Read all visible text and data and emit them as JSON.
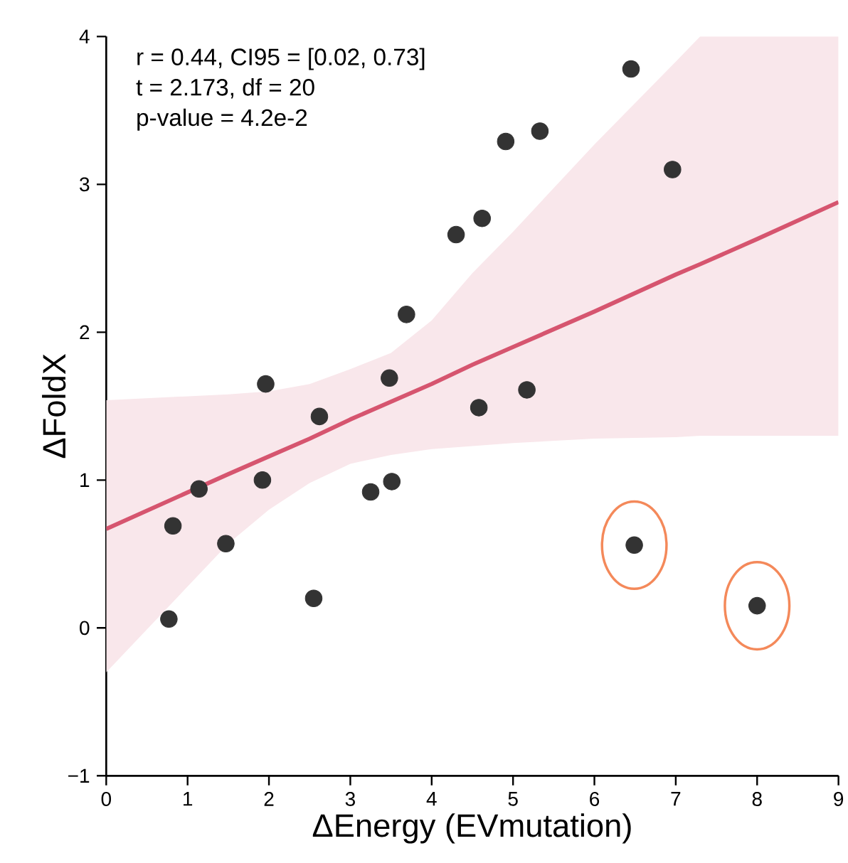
{
  "chart_data": {
    "type": "scatter",
    "xlabel": "ΔEnergy (EVmutation)",
    "ylabel": "ΔFoldX",
    "annotations": [
      "r = 0.44, CI95 = [0.02, 0.73]",
      "t = 2.173, df = 20",
      "p-value = 4.2e-2"
    ],
    "xlim": [
      0,
      9
    ],
    "ylim": [
      -1,
      4
    ],
    "xticks": [
      0,
      1,
      2,
      3,
      4,
      5,
      6,
      7,
      8,
      9
    ],
    "yticks": [
      {
        "value": -1,
        "label": "−1"
      },
      0,
      1,
      2,
      3,
      4
    ],
    "series": [
      {
        "type": "scatter",
        "marker": "circle",
        "color": "#333333",
        "x": [
          0.77,
          0.82,
          1.14,
          1.47,
          1.92,
          1.96,
          2.55,
          2.62,
          3.25,
          3.48,
          3.51,
          3.69,
          4.3,
          4.58,
          4.62,
          4.91,
          5.17,
          5.33,
          6.45,
          6.96,
          6.49,
          8.0
        ],
        "values": [
          0.06,
          0.69,
          0.94,
          0.57,
          1.0,
          1.65,
          0.2,
          1.43,
          0.92,
          1.69,
          0.99,
          2.12,
          2.66,
          1.49,
          2.77,
          3.29,
          1.61,
          3.36,
          3.78,
          3.1,
          0.56,
          0.15
        ]
      },
      {
        "type": "line",
        "color": "#d6556f",
        "x": [
          0,
          1.5,
          2,
          2.5,
          3,
          3.5,
          4,
          4.5,
          5,
          6,
          7,
          7.3,
          8,
          9
        ],
        "values": [
          0.67,
          1.04,
          1.16,
          1.28,
          1.41,
          1.53,
          1.65,
          1.78,
          1.9,
          2.14,
          2.39,
          2.46,
          2.63,
          2.88
        ],
        "lower": [
          -0.3,
          0.57,
          0.8,
          0.98,
          1.11,
          1.17,
          1.21,
          1.23,
          1.25,
          1.28,
          1.29,
          1.3,
          1.3,
          1.3
        ],
        "upper": [
          1.54,
          1.58,
          1.6,
          1.65,
          1.75,
          1.86,
          2.08,
          2.4,
          2.68,
          3.27,
          3.83,
          4,
          4,
          4
        ]
      }
    ]
  }
}
